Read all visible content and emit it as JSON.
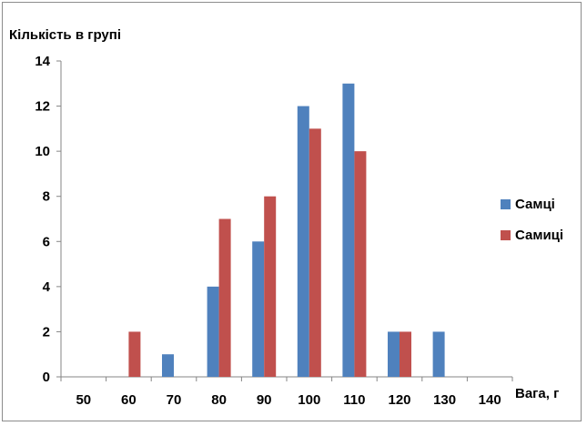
{
  "chart_data": {
    "type": "bar",
    "title": "",
    "ylabel": "Кількість в групі",
    "xlabel": "Вага, г",
    "categories": [
      "50",
      "60",
      "70",
      "80",
      "90",
      "100",
      "110",
      "120",
      "130",
      "140"
    ],
    "series": [
      {
        "name": "Самці",
        "color": "#4f81bd",
        "values": [
          0,
          0,
          1,
          4,
          6,
          12,
          13,
          2,
          2,
          0
        ]
      },
      {
        "name": "Самиці",
        "color": "#c0504d",
        "values": [
          0,
          2,
          0,
          7,
          8,
          11,
          10,
          2,
          0,
          0
        ]
      }
    ],
    "ylim": [
      0,
      14
    ],
    "yticks": [
      "0",
      "2",
      "4",
      "6",
      "8",
      "10",
      "12",
      "14"
    ],
    "grid": false,
    "legend_position": "right"
  }
}
